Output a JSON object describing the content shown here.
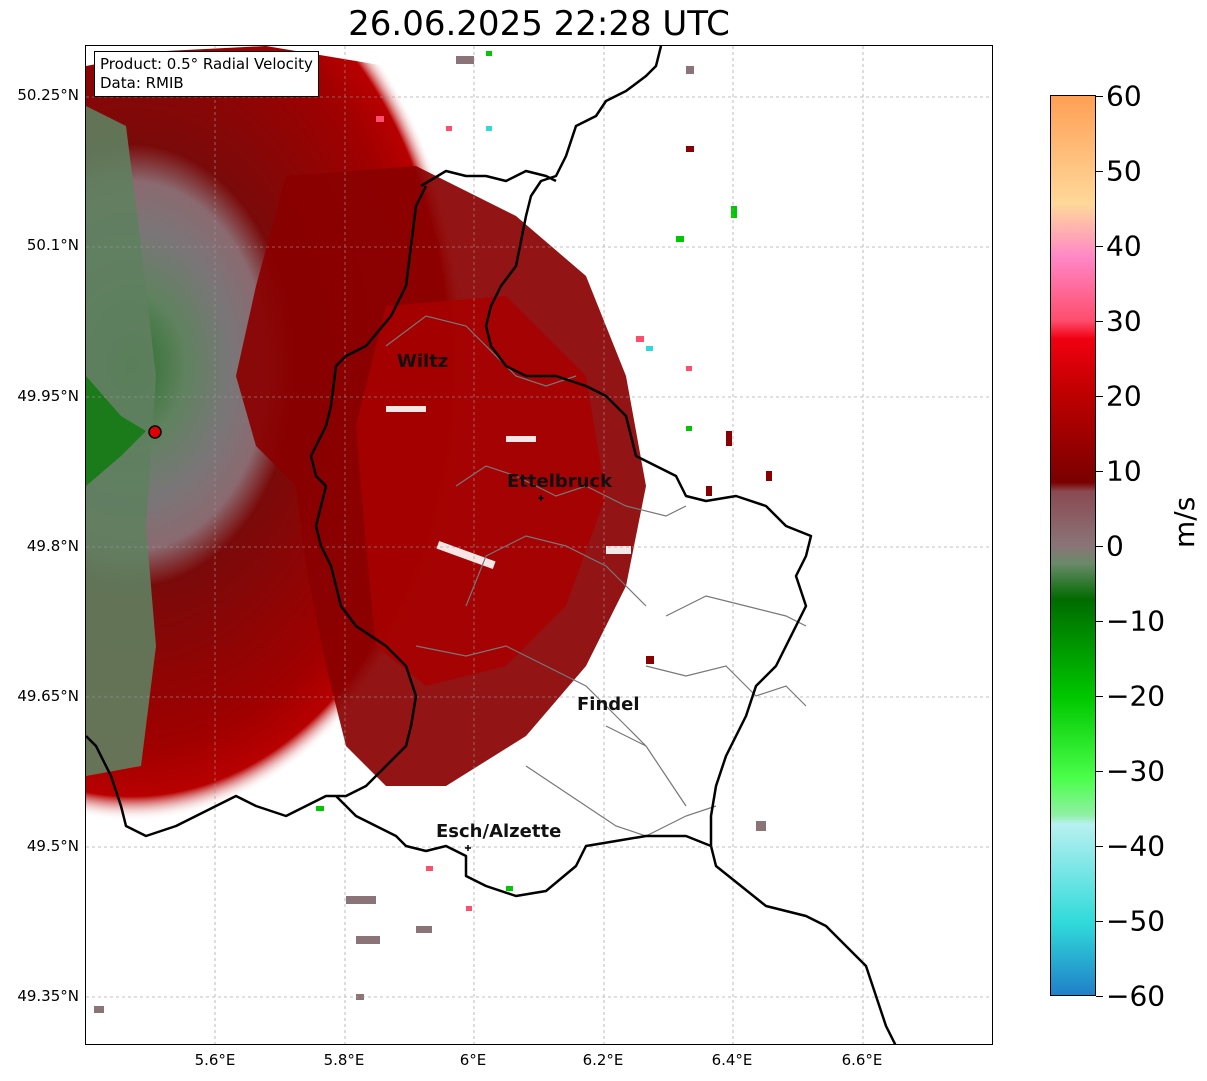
{
  "title": "26.06.2025 22:28 UTC",
  "info_box": {
    "product": "Product: 0.5° Radial Velocity",
    "data_source": "Data: RMIB"
  },
  "lat_labels": [
    "50.25°N",
    "50.1°N",
    "49.95°N",
    "49.8°N",
    "49.65°N",
    "49.5°N",
    "49.35°N"
  ],
  "lon_labels": [
    "5.6°E",
    "5.8°E",
    "6°E",
    "6.2°E",
    "6.4°E",
    "6.6°E"
  ],
  "cities": {
    "wiltz": "Wiltz",
    "ettelbruck": "Ettelbruck",
    "findel": "Findel",
    "esch": "Esch/Alzette"
  },
  "colorbar": {
    "unit_label": "m/s",
    "tick_labels": [
      "60",
      "50",
      "40",
      "30",
      "20",
      "10",
      "0",
      "−10",
      "−20",
      "−30",
      "−40",
      "−50",
      "−60"
    ],
    "range": [
      -60,
      60
    ],
    "colors": {
      "orange": "#ff9f55",
      "light_orange": "#ffd89a",
      "pink": "#ff86c6",
      "red_pink": "#ff4d6d",
      "bright_red": "#f00010",
      "red": "#c00000",
      "dark_red": "#7a0000",
      "muted_red": "#8a4a52",
      "gray_mauve": "#8a7478",
      "gray_green": "#6a8a6a",
      "dark_green": "#006b00",
      "green": "#00c800",
      "light_green": "#4cff4c",
      "pale_green": "#8ff0a4",
      "pale_cyan": "#b8f0f0",
      "cyan": "#30dada",
      "blue": "#2080c8"
    }
  },
  "radar_site_color": "#ff0000"
}
